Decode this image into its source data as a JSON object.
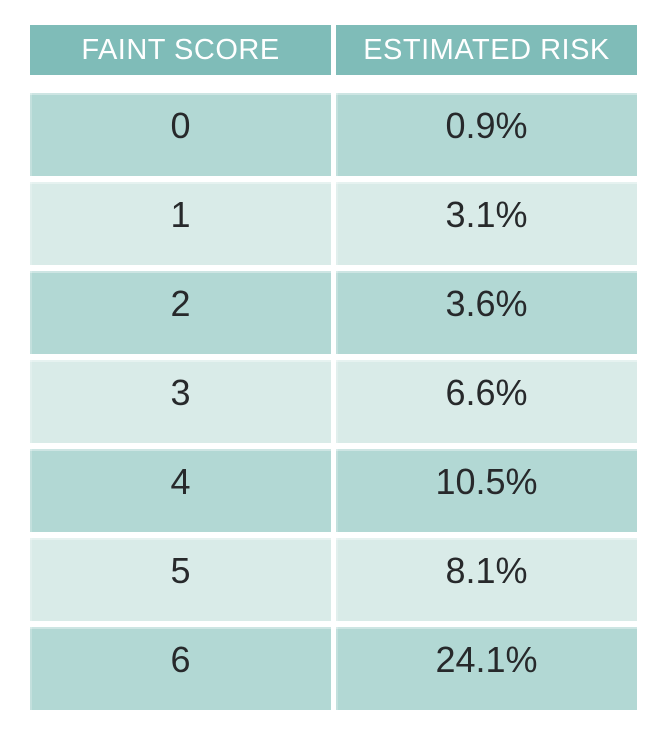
{
  "table": {
    "columns": [
      {
        "label": "FAINT SCORE"
      },
      {
        "label": "ESTIMATED RISK"
      }
    ],
    "rows": [
      {
        "score": "0",
        "risk": "0.9%"
      },
      {
        "score": "1",
        "risk": "3.1%"
      },
      {
        "score": "2",
        "risk": "3.6%"
      },
      {
        "score": "3",
        "risk": "6.6%"
      },
      {
        "score": "4",
        "risk": "10.5%"
      },
      {
        "score": "5",
        "risk": "8.1%"
      },
      {
        "score": "6",
        "risk": "24.1%"
      }
    ]
  },
  "colors": {
    "page_bg": "#ffffff",
    "header_bg": "#7fbcb8",
    "header_text": "#ffffff",
    "row_dark": "#b2d8d4",
    "row_light": "#d9ebe8",
    "cell_text": "#27292b"
  },
  "chart_data": {
    "type": "table",
    "title": "",
    "columns": [
      "FAINT SCORE",
      "ESTIMATED RISK"
    ],
    "rows": [
      [
        "0",
        "0.9%"
      ],
      [
        "1",
        "3.1%"
      ],
      [
        "2",
        "3.6%"
      ],
      [
        "3",
        "6.6%"
      ],
      [
        "4",
        "10.5%"
      ],
      [
        "5",
        "8.1%"
      ],
      [
        "6",
        "24.1%"
      ]
    ],
    "faint_scores": [
      0,
      1,
      2,
      3,
      4,
      5,
      6
    ],
    "estimated_risk_percent": [
      0.9,
      3.1,
      3.6,
      6.6,
      10.5,
      8.1,
      24.1
    ]
  }
}
